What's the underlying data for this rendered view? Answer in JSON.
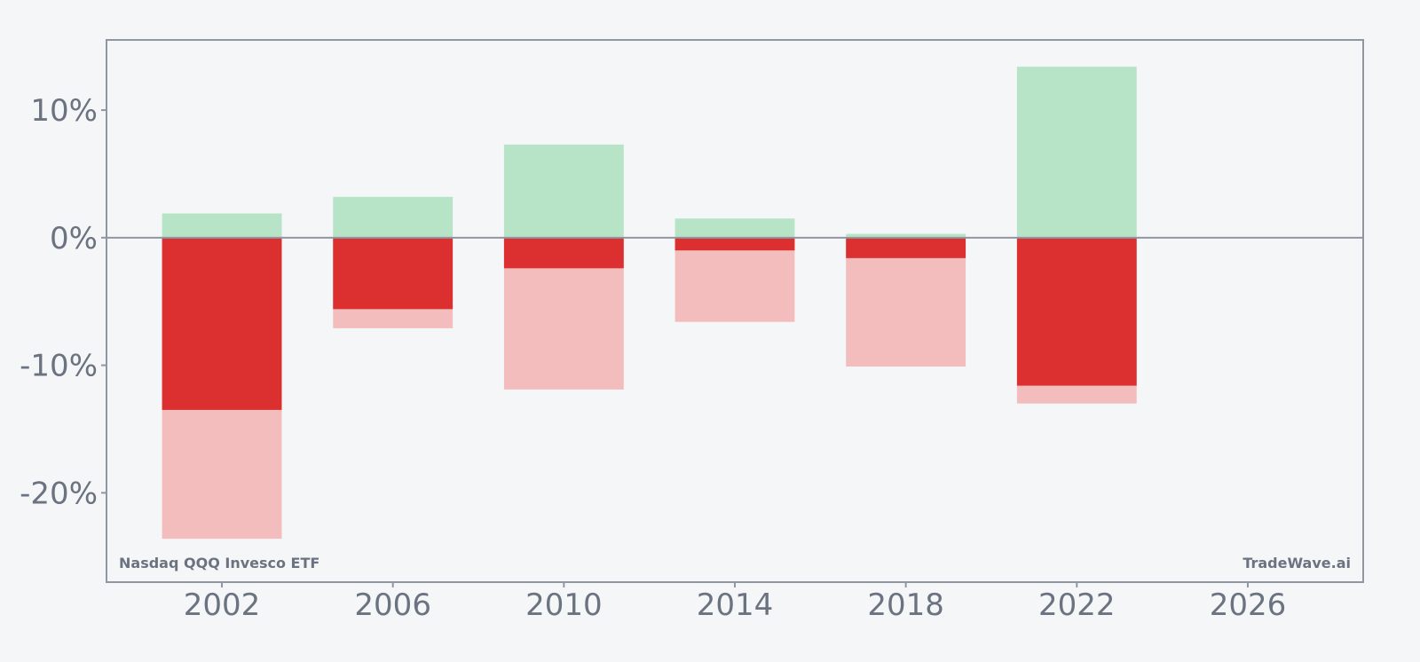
{
  "chart_data": {
    "type": "bar",
    "x": [
      2002,
      2006,
      2010,
      2014,
      2018,
      2022
    ],
    "series": [
      {
        "role": "positive-range",
        "values": [
          1.9,
          3.2,
          7.3,
          1.5,
          0.3,
          13.4
        ]
      },
      {
        "role": "negative-dark",
        "values": [
          -13.5,
          -5.6,
          -2.4,
          -1.0,
          -1.6,
          -11.6
        ]
      },
      {
        "role": "negative-range",
        "values": [
          -23.6,
          -7.1,
          -11.9,
          -6.6,
          -10.1,
          -13.0
        ]
      }
    ],
    "xlim": [
      1999.3,
      2028.7
    ],
    "ylim": [
      -27.0,
      15.5
    ],
    "x_ticks": [
      2002,
      2006,
      2010,
      2014,
      2018,
      2022,
      2026
    ],
    "y_ticks": [
      10,
      0,
      -10,
      -20
    ],
    "x_tick_labels": [
      "2002",
      "2006",
      "2010",
      "2014",
      "2018",
      "2022",
      "2026"
    ],
    "y_tick_labels": [
      "10%",
      "0%",
      "-10%",
      "-20%"
    ],
    "zero_line": true,
    "grid": false,
    "colors": {
      "positive-range": "#b7e3c7",
      "negative-dark": "#dc3030",
      "negative-range": "#f3bdbd",
      "axis": "#8f97a3",
      "text": "#6b7280"
    }
  },
  "footer": {
    "left_label": "Nasdaq QQQ Invesco ETF",
    "right_label": "TradeWave.ai"
  }
}
